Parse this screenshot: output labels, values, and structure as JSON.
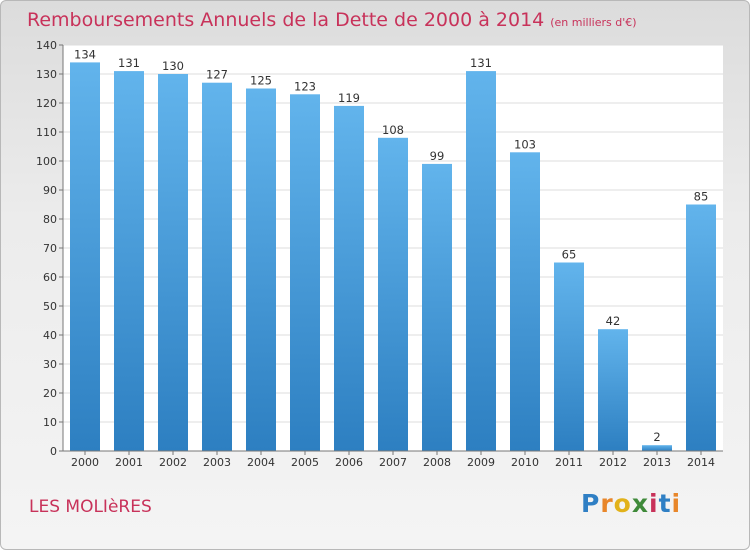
{
  "chart_data": {
    "type": "bar",
    "title": "Remboursements Annuels de la Dette de 2000 à 2014",
    "subtitle": "(en milliers d'€)",
    "categories": [
      "2000",
      "2001",
      "2002",
      "2003",
      "2004",
      "2005",
      "2006",
      "2007",
      "2008",
      "2009",
      "2010",
      "2011",
      "2012",
      "2013",
      "2014"
    ],
    "values": [
      134,
      131,
      130,
      127,
      125,
      123,
      119,
      108,
      99,
      131,
      103,
      65,
      42,
      2,
      85
    ],
    "ylim": [
      0,
      140
    ],
    "yticks": [
      0,
      10,
      20,
      30,
      40,
      50,
      60,
      70,
      80,
      90,
      100,
      110,
      120,
      130,
      140
    ],
    "xlabel": "",
    "ylabel": "",
    "grid": true
  },
  "commune": "LES MOLIèRES",
  "logo": {
    "letters": [
      "P",
      "r",
      "o",
      "x",
      "i",
      "t",
      "i"
    ],
    "colors": [
      "#2f7fc4",
      "#e8862a",
      "#e2b21a",
      "#3f8a3a",
      "#c8325a",
      "#2f7fc4",
      "#e8862a"
    ]
  },
  "colors": {
    "accent": "#c8325a",
    "bar_top": "#62b4ec",
    "bar_bottom": "#2d7fc1"
  }
}
